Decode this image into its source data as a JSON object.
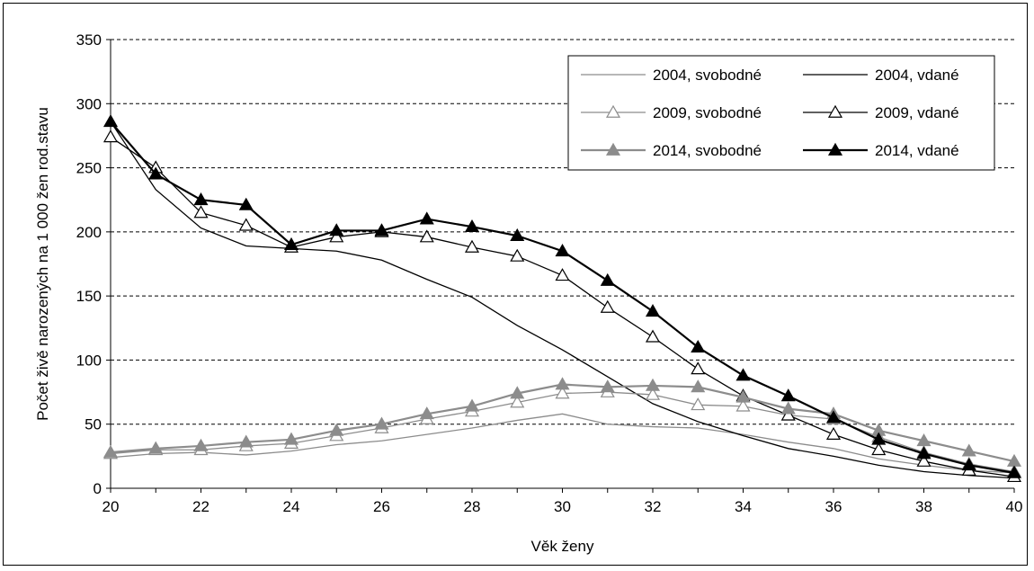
{
  "chart_data": {
    "type": "line",
    "title": "",
    "xlabel": "Věk ženy",
    "ylabel": "Počet živě narozených na 1 000 žen rod.stavu",
    "xlim": [
      20,
      40
    ],
    "ylim": [
      0,
      350
    ],
    "x_ticks": [
      "20",
      "22",
      "24",
      "26",
      "28",
      "30",
      "32",
      "34",
      "36",
      "38",
      "40"
    ],
    "y_ticks": [
      "0",
      "50",
      "100",
      "150",
      "200",
      "250",
      "300",
      "350"
    ],
    "grid": "horizontal dashed",
    "legend_position": "top-right",
    "x": [
      20,
      21,
      22,
      23,
      24,
      25,
      26,
      27,
      28,
      29,
      30,
      31,
      32,
      33,
      34,
      35,
      36,
      37,
      38,
      39,
      40
    ],
    "series": [
      {
        "name": "2004, svobodné",
        "color": "#8c8c8c",
        "width": 1.3,
        "marker": "none",
        "values": [
          24,
          27,
          28,
          26,
          29,
          34,
          37,
          42,
          47,
          53,
          58,
          50,
          48,
          47,
          42,
          36,
          31,
          23,
          18,
          14,
          12
        ]
      },
      {
        "name": "2004, vdané",
        "color": "#000000",
        "width": 1.3,
        "marker": "none",
        "values": [
          286,
          233,
          203,
          189,
          187,
          185,
          178,
          163,
          149,
          127,
          108,
          87,
          66,
          52,
          41,
          31,
          25,
          18,
          13,
          10,
          8
        ]
      },
      {
        "name": "2009, svobodné",
        "color": "#8c8c8c",
        "width": 1.3,
        "marker": "open-triangle",
        "values": [
          27,
          30,
          30,
          33,
          35,
          41,
          47,
          54,
          60,
          67,
          74,
          75,
          73,
          65,
          64,
          57,
          54,
          40,
          28,
          19,
          13
        ]
      },
      {
        "name": "2009, vdané",
        "color": "#000000",
        "width": 1.3,
        "marker": "open-triangle",
        "values": [
          274,
          250,
          215,
          205,
          188,
          196,
          200,
          196,
          188,
          181,
          166,
          141,
          118,
          93,
          72,
          57,
          42,
          30,
          21,
          14,
          9
        ]
      },
      {
        "name": "2014, svobodné",
        "color": "#8c8c8c",
        "width": 2.2,
        "marker": "filled-triangle",
        "values": [
          28,
          31,
          33,
          36,
          38,
          45,
          50,
          58,
          64,
          74,
          81,
          79,
          80,
          79,
          71,
          62,
          58,
          45,
          37,
          29,
          21
        ]
      },
      {
        "name": "2014, vdané",
        "color": "#000000",
        "width": 2.2,
        "marker": "filled-triangle",
        "values": [
          286,
          245,
          225,
          221,
          190,
          201,
          201,
          210,
          204,
          197,
          185,
          162,
          138,
          110,
          88,
          72,
          55,
          38,
          27,
          18,
          12
        ]
      }
    ]
  }
}
